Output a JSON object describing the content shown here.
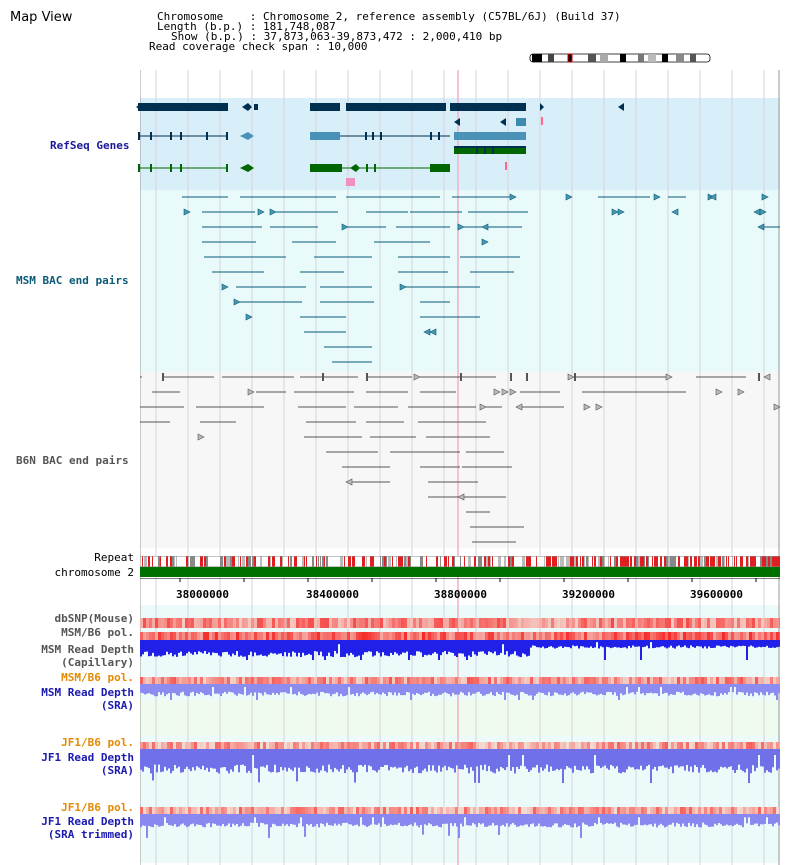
{
  "window": {
    "title": "Map View"
  },
  "info": {
    "chromosome_line": "Chromosome    : Chromosome 2, reference assembly (C57BL/6J) (Build 37)",
    "length_line": "Length (b.p.) : 181,748,087",
    "show_line": "Show (b.p.) : 37,873,063-39,873,472 : 2,000,410 bp",
    "coverage_line": "Read coverage check span : 10,000"
  },
  "tracks": {
    "refseq": {
      "label": "RefSeq Genes",
      "color": "#00304f"
    },
    "msm_bac": {
      "label": "MSM BAC end pairs",
      "color": "#0a5a78"
    },
    "b6n_bac": {
      "label": "B6N BAC end pairs",
      "color": "#555555"
    },
    "repeat": {
      "label": "Repeat"
    },
    "chromosome": {
      "label": "chromosome 2",
      "color": "#007000"
    },
    "dbsnp": {
      "label": "dbSNP(Mouse)"
    },
    "msm_b6_pol_1": {
      "label": "MSM/B6 pol."
    },
    "msm_depth_cap": {
      "label1": "MSM Read Depth",
      "label2": "(Capillary)"
    },
    "msm_b6_pol_2": {
      "label": "MSM/B6 pol.",
      "color": "#e58a00"
    },
    "msm_depth_sra": {
      "label1": "MSM Read Depth",
      "label2": "(SRA)"
    },
    "jf1_b6_pol_1": {
      "label": "JF1/B6 pol.",
      "color": "#e58a00"
    },
    "jf1_depth_sra": {
      "label1": "JF1 Read Depth",
      "label2": "(SRA)"
    },
    "jf1_b6_pol_2": {
      "label": "JF1/B6 pol.",
      "color": "#e58a00"
    },
    "jf1_depth_trim": {
      "label1": "JF1 Read Depth",
      "label2": "(SRA trimmed)"
    }
  },
  "axis": {
    "ticks": [
      "38000000",
      "38400000",
      "38800000",
      "39200000",
      "39600000"
    ]
  }
}
